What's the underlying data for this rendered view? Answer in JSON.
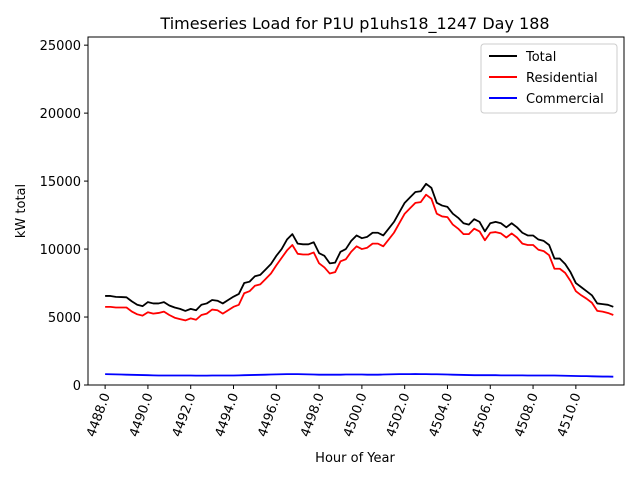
{
  "chart_data": {
    "type": "line",
    "title": "Timeseries Load for P1U p1uhs18_1247  Day 188",
    "xlabel": "Hour of Year",
    "ylabel": "kW total",
    "xlim": [
      4487.2,
      4512.25
    ],
    "ylim": [
      0,
      25600
    ],
    "xticks": [
      4488,
      4490,
      4492,
      4494,
      4496,
      4498,
      4500,
      4502,
      4504,
      4506,
      4508,
      4510
    ],
    "xtick_labels": [
      "4488.0",
      "4490.0",
      "4492.0",
      "4494.0",
      "4496.0",
      "4498.0",
      "4500.0",
      "4502.0",
      "4504.0",
      "4506.0",
      "4508.0",
      "4510.0"
    ],
    "yticks": [
      0,
      5000,
      10000,
      15000,
      20000,
      25000
    ],
    "ytick_labels": [
      "0",
      "5000",
      "10000",
      "15000",
      "20000",
      "25000"
    ],
    "legend_position": "top-right",
    "x": [
      4488.0,
      4488.25,
      4488.5,
      4488.75,
      4489.0,
      4489.25,
      4489.5,
      4489.75,
      4490.0,
      4490.25,
      4490.5,
      4490.75,
      4491.0,
      4491.25,
      4491.5,
      4491.75,
      4492.0,
      4492.25,
      4492.5,
      4492.75,
      4493.0,
      4493.25,
      4493.5,
      4493.75,
      4494.0,
      4494.25,
      4494.5,
      4494.75,
      4495.0,
      4495.25,
      4495.5,
      4495.75,
      4496.0,
      4496.25,
      4496.5,
      4496.75,
      4497.0,
      4497.25,
      4497.5,
      4497.75,
      4498.0,
      4498.25,
      4498.5,
      4498.75,
      4499.0,
      4499.25,
      4499.5,
      4499.75,
      4500.0,
      4500.25,
      4500.5,
      4500.75,
      4501.0,
      4501.25,
      4501.5,
      4501.75,
      4502.0,
      4502.25,
      4502.5,
      4502.75,
      4503.0,
      4503.25,
      4503.5,
      4503.75,
      4504.0,
      4504.25,
      4504.5,
      4504.75,
      4505.0,
      4505.25,
      4505.5,
      4505.75,
      4506.0,
      4506.25,
      4506.5,
      4506.75,
      4507.0,
      4507.25,
      4507.5,
      4507.75,
      4508.0,
      4508.25,
      4508.5,
      4508.75,
      4509.0,
      4509.25,
      4509.5,
      4509.75,
      4510.0,
      4510.25,
      4510.5,
      4510.75,
      4511.0,
      4511.25,
      4511.5,
      4511.75
    ],
    "series": [
      {
        "name": "Total",
        "color": "#000000",
        "values": [
          6550,
          6550,
          6480,
          6470,
          6450,
          6150,
          5900,
          5800,
          6100,
          6000,
          6000,
          6100,
          5850,
          5700,
          5600,
          5450,
          5600,
          5500,
          5900,
          6000,
          6250,
          6200,
          6000,
          6250,
          6500,
          6700,
          7500,
          7600,
          8000,
          8100,
          8500,
          8900,
          9500,
          10000,
          10700,
          11100,
          10400,
          10350,
          10350,
          10500,
          9700,
          9500,
          8950,
          9000,
          9800,
          10000,
          10600,
          11000,
          10800,
          10900,
          11200,
          11200,
          11000,
          11500,
          12000,
          12700,
          13400,
          13800,
          14200,
          14250,
          14800,
          14500,
          13400,
          13200,
          13100,
          12600,
          12300,
          11900,
          11800,
          12200,
          12000,
          11300,
          11900,
          12000,
          11900,
          11600,
          11900,
          11600,
          11200,
          11000,
          11000,
          10700,
          10600,
          10300,
          9300,
          9300,
          8900,
          8300,
          7500,
          7200,
          6900,
          6600,
          6000,
          5950,
          5900,
          5750
        ]
      },
      {
        "name": "Residential",
        "color": "#ff0000",
        "values": [
          5750,
          5750,
          5700,
          5700,
          5700,
          5400,
          5200,
          5100,
          5350,
          5250,
          5300,
          5400,
          5150,
          4950,
          4850,
          4750,
          4900,
          4800,
          5150,
          5250,
          5550,
          5500,
          5250,
          5500,
          5750,
          5900,
          6750,
          6900,
          7300,
          7400,
          7800,
          8200,
          8800,
          9350,
          9900,
          10300,
          9650,
          9600,
          9600,
          9750,
          8950,
          8650,
          8200,
          8300,
          9100,
          9250,
          9800,
          10200,
          10000,
          10100,
          10400,
          10400,
          10200,
          10700,
          11200,
          11900,
          12600,
          13000,
          13400,
          13450,
          14000,
          13700,
          12600,
          12400,
          12350,
          11800,
          11500,
          11100,
          11100,
          11500,
          11300,
          10650,
          11200,
          11250,
          11150,
          10850,
          11150,
          10850,
          10400,
          10300,
          10300,
          9950,
          9850,
          9550,
          8550,
          8550,
          8250,
          7650,
          6900,
          6600,
          6350,
          6050,
          5450,
          5400,
          5300,
          5150
        ]
      },
      {
        "name": "Commercial",
        "color": "#0000ff",
        "values": [
          800,
          790,
          780,
          770,
          760,
          750,
          740,
          730,
          720,
          710,
          700,
          700,
          700,
          700,
          700,
          700,
          700,
          690,
          690,
          690,
          700,
          700,
          700,
          700,
          700,
          710,
          720,
          730,
          740,
          750,
          760,
          770,
          780,
          790,
          800,
          800,
          800,
          790,
          780,
          770,
          760,
          760,
          760,
          760,
          760,
          770,
          770,
          770,
          770,
          760,
          760,
          760,
          770,
          780,
          790,
          800,
          800,
          800,
          810,
          800,
          800,
          790,
          790,
          780,
          770,
          760,
          750,
          740,
          730,
          720,
          720,
          720,
          720,
          720,
          710,
          710,
          710,
          710,
          710,
          700,
          700,
          700,
          700,
          700,
          700,
          690,
          680,
          670,
          660,
          650,
          650,
          640,
          630,
          620,
          620,
          610
        ]
      }
    ]
  }
}
